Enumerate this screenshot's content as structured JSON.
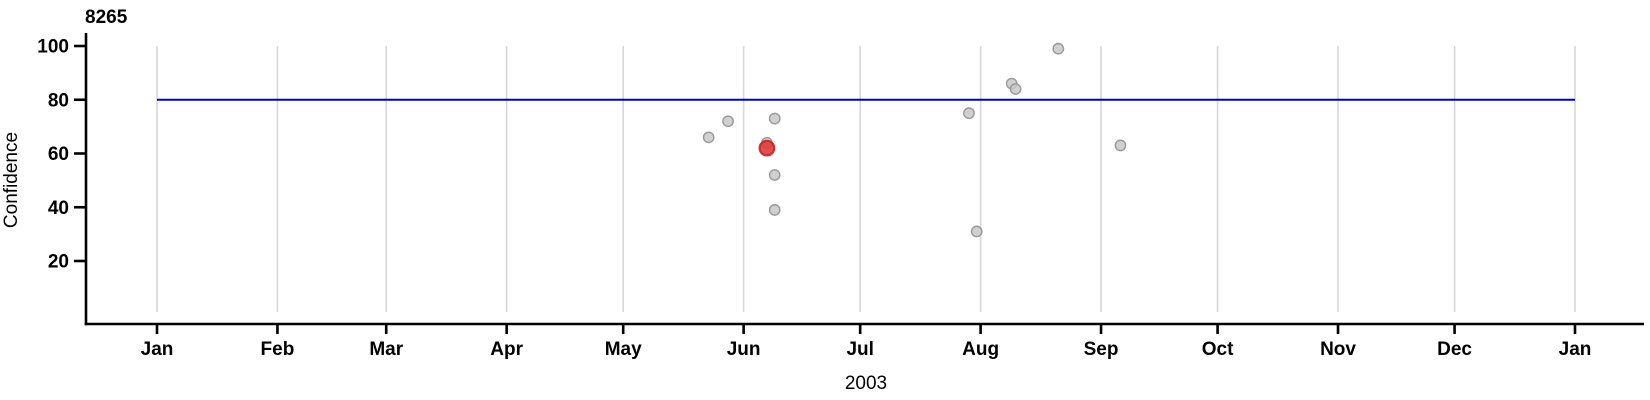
{
  "chart_data": {
    "type": "scatter",
    "title": "8265",
    "ylabel": "Confidence",
    "xlabel": "2003",
    "x_axis": {
      "unit": "month",
      "tick_labels": [
        "Jan",
        "Feb",
        "Mar",
        "Apr",
        "May",
        "Jun",
        "Jul",
        "Aug",
        "Sep",
        "Oct",
        "Nov",
        "Dec",
        "Jan"
      ],
      "tick_day_offsets": [
        0,
        31,
        59,
        90,
        120,
        151,
        181,
        212,
        243,
        273,
        304,
        334,
        365
      ],
      "range_days": [
        0,
        365
      ],
      "year": "2003"
    },
    "y_axis": {
      "ticks": [
        20,
        40,
        60,
        80,
        100
      ],
      "range": [
        0,
        105
      ]
    },
    "grid": true,
    "legend": "none",
    "reference_line": {
      "value": 80,
      "color": "#0000CD"
    },
    "points": [
      {
        "date": "2003-05-23",
        "confidence": 66,
        "highlighted": false
      },
      {
        "date": "2003-05-28",
        "confidence": 72,
        "highlighted": false
      },
      {
        "date": "2003-06-07",
        "confidence": 64,
        "highlighted": false
      },
      {
        "date": "2003-06-07",
        "confidence": 62,
        "highlighted": true
      },
      {
        "date": "2003-06-09",
        "confidence": 73,
        "highlighted": false
      },
      {
        "date": "2003-06-09",
        "confidence": 52,
        "highlighted": false
      },
      {
        "date": "2003-06-09",
        "confidence": 39,
        "highlighted": false
      },
      {
        "date": "2003-07-29",
        "confidence": 75,
        "highlighted": false
      },
      {
        "date": "2003-07-31",
        "confidence": 31,
        "highlighted": false
      },
      {
        "date": "2003-08-09",
        "confidence": 86,
        "highlighted": false
      },
      {
        "date": "2003-08-10",
        "confidence": 84,
        "highlighted": false
      },
      {
        "date": "2003-08-21",
        "confidence": 99,
        "highlighted": false
      },
      {
        "date": "2003-09-06",
        "confidence": 63,
        "highlighted": false
      }
    ],
    "colors": {
      "point_fill": "#C8C8C8",
      "point_stroke": "#919191",
      "highlight_fill": "#E03C3C",
      "highlight_stroke": "#C32626",
      "grid": "#D7D7D7",
      "axis": "#000000",
      "reference": "#0000CD",
      "background": "#FFFFFF"
    }
  }
}
